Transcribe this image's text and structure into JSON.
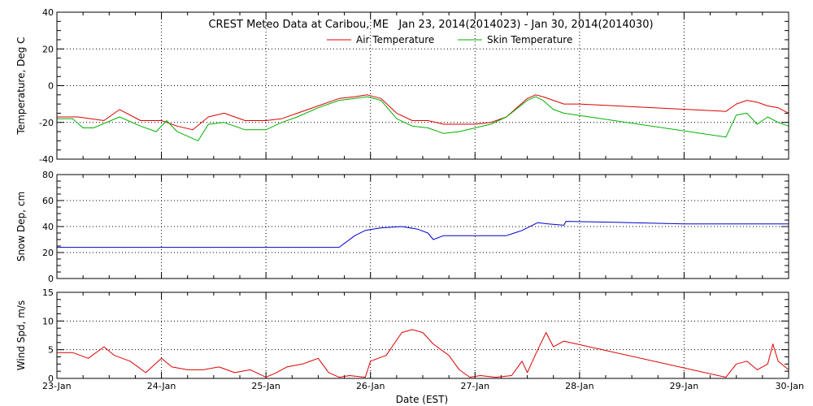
{
  "title": "CREST Meteo Data at Caribou, ME   Jan 23, 2014(2014023) - Jan 30, 2014(2014030)",
  "xlabel": "Date (EST)",
  "colors": {
    "air": "#dd0000",
    "skin": "#00b000",
    "snow": "#0000cc",
    "wind": "#dd0000"
  },
  "chart_data": [
    {
      "type": "line",
      "title": "CREST Meteo Data at Caribou, ME   Jan 23, 2014(2014023) - Jan 30, 2014(2014030)",
      "xlabel": "",
      "ylabel": "Temperature, Deg C",
      "xlim": [
        23,
        30
      ],
      "ylim": [
        -40,
        40
      ],
      "yticks": [
        -40,
        -20,
        0,
        20,
        40
      ],
      "xticks": [
        "23-Jan",
        "24-Jan",
        "25-Jan",
        "26-Jan",
        "27-Jan",
        "28-Jan",
        "29-Jan",
        "30-Jan"
      ],
      "grid": true,
      "legend": "top-center",
      "series": [
        {
          "name": "Air Temperature",
          "color": "#dd0000",
          "x": [
            23.0,
            23.2,
            23.45,
            23.6,
            23.8,
            24.0,
            24.15,
            24.3,
            24.45,
            24.6,
            24.8,
            25.0,
            25.15,
            25.3,
            25.5,
            25.7,
            25.85,
            25.97,
            26.1,
            26.25,
            26.4,
            26.55,
            26.7,
            26.85,
            27.0,
            27.15,
            27.3,
            27.5,
            27.58,
            27.65,
            27.75,
            27.85,
            28.0,
            29.4,
            29.5,
            29.6,
            29.7,
            29.8,
            29.9,
            30.0
          ],
          "values": [
            -17,
            -17,
            -19,
            -13,
            -19,
            -19,
            -22,
            -24,
            -17,
            -15,
            -19,
            -19,
            -18,
            -15,
            -11,
            -7,
            -6,
            -5,
            -7,
            -15,
            -19,
            -19,
            -21,
            -21,
            -21,
            -20,
            -17,
            -7,
            -5,
            -6,
            -8,
            -10,
            -10,
            -14,
            -10,
            -8,
            -9,
            -11,
            -12,
            -15
          ]
        },
        {
          "name": "Skin Temperature",
          "color": "#00b000",
          "x": [
            23.0,
            23.15,
            23.25,
            23.35,
            23.6,
            23.8,
            23.95,
            24.05,
            24.15,
            24.35,
            24.45,
            24.6,
            24.8,
            25.0,
            25.15,
            25.3,
            25.5,
            25.7,
            25.85,
            25.97,
            26.1,
            26.25,
            26.4,
            26.55,
            26.7,
            26.85,
            27.0,
            27.15,
            27.3,
            27.5,
            27.58,
            27.65,
            27.75,
            27.85,
            29.4,
            29.5,
            29.6,
            29.7,
            29.8,
            29.9,
            30.0
          ],
          "values": [
            -18,
            -18,
            -23,
            -23,
            -17,
            -22,
            -25,
            -19,
            -25,
            -30,
            -21,
            -20,
            -24,
            -24,
            -20,
            -17,
            -12,
            -8,
            -7,
            -6,
            -8,
            -18,
            -22,
            -23,
            -26,
            -25,
            -23,
            -21,
            -17,
            -8,
            -6,
            -8,
            -13,
            -15,
            -28,
            -16,
            -15,
            -21,
            -17,
            -20,
            -22
          ]
        }
      ]
    },
    {
      "type": "line",
      "title": "",
      "xlabel": "",
      "ylabel": "Snow Dep, cm",
      "xlim": [
        23,
        30
      ],
      "ylim": [
        0,
        80
      ],
      "yticks": [
        0,
        20,
        40,
        60,
        80
      ],
      "xticks": [
        "23-Jan",
        "24-Jan",
        "25-Jan",
        "26-Jan",
        "27-Jan",
        "28-Jan",
        "29-Jan",
        "30-Jan"
      ],
      "grid": true,
      "series": [
        {
          "color": "#0000cc",
          "x": [
            23.0,
            23.5,
            24.0,
            24.5,
            25.0,
            25.5,
            25.7,
            25.75,
            25.85,
            25.95,
            26.1,
            26.3,
            26.45,
            26.55,
            26.6,
            26.7,
            26.9,
            27.3,
            27.45,
            27.6,
            27.7,
            27.85,
            27.87,
            28.5,
            29.0,
            29.5,
            30.0
          ],
          "values": [
            24,
            24,
            24,
            24,
            24,
            24,
            24,
            27,
            33,
            37,
            39,
            40,
            38,
            35,
            30,
            33,
            33,
            33,
            37,
            43,
            42,
            41,
            44,
            43,
            42,
            42,
            42
          ]
        }
      ]
    },
    {
      "type": "line",
      "title": "",
      "xlabel": "Date (EST)",
      "ylabel": "Wind Spd, m/s",
      "xlim": [
        23,
        30
      ],
      "ylim": [
        0,
        15
      ],
      "yticks": [
        0,
        5,
        10,
        15
      ],
      "xticks": [
        "23-Jan",
        "24-Jan",
        "25-Jan",
        "26-Jan",
        "27-Jan",
        "28-Jan",
        "29-Jan",
        "30-Jan"
      ],
      "grid": true,
      "series": [
        {
          "color": "#dd0000",
          "x": [
            23.0,
            23.15,
            23.3,
            23.45,
            23.55,
            23.7,
            23.85,
            24.0,
            24.1,
            24.25,
            24.4,
            24.55,
            24.7,
            24.85,
            25.0,
            25.1,
            25.2,
            25.35,
            25.5,
            25.6,
            25.7,
            25.8,
            25.95,
            26.0,
            26.15,
            26.3,
            26.4,
            26.5,
            26.6,
            26.75,
            26.85,
            26.95,
            27.05,
            27.2,
            27.35,
            27.45,
            27.5,
            27.6,
            27.68,
            27.75,
            27.85,
            29.4,
            29.5,
            29.6,
            29.7,
            29.8,
            29.85,
            29.9,
            30.0
          ],
          "values": [
            4.5,
            4.5,
            3.5,
            5.5,
            4.0,
            3.0,
            1.0,
            3.5,
            2.0,
            1.5,
            1.5,
            2.0,
            1.0,
            1.5,
            0.2,
            1.0,
            2.0,
            2.5,
            3.5,
            1.0,
            0.2,
            0.5,
            0.2,
            3.0,
            4.0,
            8.0,
            8.5,
            8.0,
            6.0,
            4.0,
            1.5,
            0.2,
            0.5,
            0.2,
            0.5,
            3.0,
            1.0,
            5.0,
            8.0,
            5.5,
            6.5,
            0.2,
            2.5,
            3.0,
            1.5,
            2.5,
            6.0,
            3.0,
            1.5
          ]
        }
      ]
    }
  ]
}
